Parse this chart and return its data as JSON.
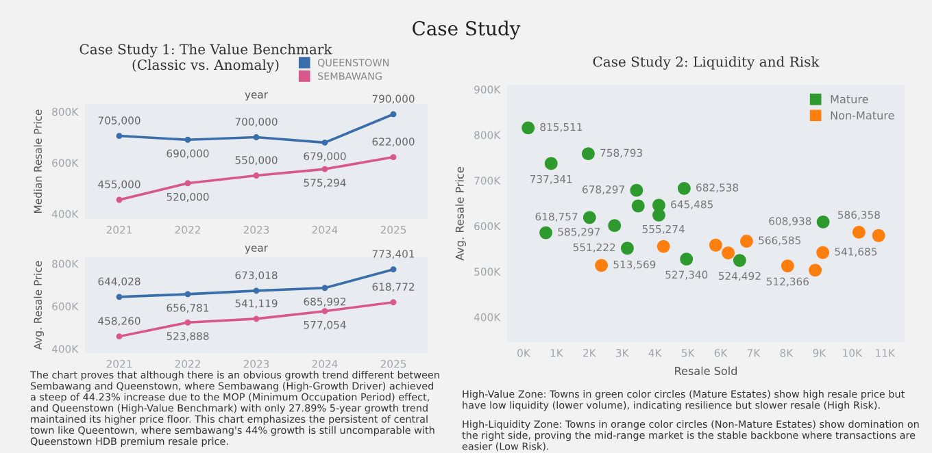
{
  "chart_data": [
    {
      "type": "line",
      "title": "Case Study 1: The Value Benchmark (Classic vs. Anomaly)",
      "xlabel": "year",
      "ylabel": "Median Resale Price",
      "annotations": [
        "Case Study"
      ],
      "categories": [
        "2021",
        "2022",
        "2023",
        "2024",
        "2025"
      ],
      "series": [
        {
          "name": "QUEENSTOWN",
          "color": "#3a6eab",
          "values": [
            705000,
            690000,
            700000,
            679000,
            790000
          ],
          "value_labels": [
            "705,000",
            "690,000",
            "700,000",
            "679,000",
            "790,000"
          ]
        },
        {
          "name": "SEMBAWANG",
          "color": "#d9588a",
          "values": [
            455000,
            520000,
            550000,
            575294,
            622000
          ],
          "value_labels": [
            "455,000",
            "520,000",
            "550,000",
            "575,294",
            "622,000"
          ]
        }
      ],
      "ylim": [
        380000,
        830000
      ],
      "yticks": [
        {
          "value": 400000,
          "label": "400K"
        },
        {
          "value": 600000,
          "label": "600K"
        },
        {
          "value": 800000,
          "label": "800K"
        }
      ],
      "marker": "circle",
      "line_style": "solid",
      "legend": "top right",
      "grid": false
    },
    {
      "type": "line",
      "xlabel": "year",
      "ylabel": "Avg. Resale Price",
      "annotations": [
        "The chart proves that although there is an obvious growth trend different between Sembawang and Queenstown, where Sembawang (High-Growth Driver) achieved a steep of 44.23% increase due to the MOP (Minimum Occupation Period) effect, and Queenstown (High-Value Benchmark) with only 27.89% 5-year growth trend maintained its higher price floor. This chart emphasizes the persistent of central town like Queentown, where sembawang's 44% growth is still uncomparable with Queenstown HDB premium resale price."
      ],
      "categories": [
        "2021",
        "2022",
        "2023",
        "2024",
        "2025"
      ],
      "series": [
        {
          "color": "#3a6eab",
          "values": [
            644028,
            656781,
            673018,
            685992,
            773401
          ],
          "value_labels": [
            "644,028",
            "656,781",
            "673,018",
            "685,992",
            "773,401"
          ]
        },
        {
          "color": "#d9588a",
          "values": [
            458260,
            523888,
            541119,
            577054,
            618772
          ],
          "value_labels": [
            "458,260",
            "523,888",
            "541,119",
            "577,054",
            "618,772"
          ]
        }
      ],
      "ylim": [
        380000,
        830000
      ],
      "yticks": [
        {
          "value": 400000,
          "label": "400K"
        },
        {
          "value": 600000,
          "label": "600K"
        },
        {
          "value": 800000,
          "label": "800K"
        }
      ],
      "marker": "circle",
      "line_style": "solid",
      "grid": false
    },
    {
      "type": "scatter",
      "title": "Case Study 2: Liquidity and Risk",
      "xlabel": "Resale Sold",
      "ylabel": "Avg. Resale Price",
      "annotations": [
        "High-Value Zone: Towns in green color circles (Mature Estates) show high resale price but have low liquidity (lower volume), indicating resilience but slower resale (High Risk).",
        "High-Liquidity Zone: Towns in orange color circles (Non-Mature Estates) show domination on the right side, proving the mid-range market is the stable backbone where transactions are easier (Low Risk)."
      ],
      "series": [
        {
          "name": "Mature",
          "color": "#2e9a2e",
          "x": [
            140,
            840,
            1970,
            3440,
            4890,
            3490,
            4120,
            4120,
            2010,
            2770,
            680,
            3160,
            9120,
            4960,
            6580
          ],
          "values": [
            815511,
            737341,
            758793,
            678297,
            682538,
            644000,
            645485,
            624000,
            618757,
            601000,
            585297,
            551222,
            608938,
            527340,
            524492
          ],
          "value_labels": [
            "815,511",
            "737,341",
            "758,793",
            "678,297",
            "682,538",
            null,
            "645,485",
            null,
            "618,757",
            null,
            "585,297",
            "551,222",
            "608,938",
            "527,340",
            "524,492"
          ]
        },
        {
          "name": "Non-Mature",
          "color": "#ff7f0e",
          "x": [
            2370,
            4260,
            5850,
            6230,
            6790,
            8040,
            8880,
            9110,
            10210,
            10810
          ],
          "values": [
            513569,
            555274,
            558000,
            541000,
            566585,
            512366,
            503000,
            541685,
            586358,
            579000
          ],
          "value_labels": [
            "513,569",
            "555,274",
            null,
            null,
            "566,585",
            "512,366",
            null,
            "541,685",
            "586,358",
            null
          ]
        }
      ],
      "xlim": [
        -500,
        11600
      ],
      "ylim": [
        345000,
        910000
      ],
      "xticks": [
        {
          "value": 0,
          "label": "0K"
        },
        {
          "value": 1000,
          "label": "1K"
        },
        {
          "value": 2000,
          "label": "2K"
        },
        {
          "value": 3000,
          "label": "3K"
        },
        {
          "value": 4000,
          "label": "4K"
        },
        {
          "value": 5000,
          "label": "5K"
        },
        {
          "value": 6000,
          "label": "6K"
        },
        {
          "value": 7000,
          "label": "7K"
        },
        {
          "value": 8000,
          "label": "8K"
        },
        {
          "value": 9000,
          "label": "9K"
        },
        {
          "value": 10000,
          "label": "10K"
        },
        {
          "value": 11000,
          "label": "11K"
        }
      ],
      "yticks": [
        {
          "value": 400000,
          "label": "400K"
        },
        {
          "value": 500000,
          "label": "500K"
        },
        {
          "value": 600000,
          "label": "600K"
        },
        {
          "value": 700000,
          "label": "700K"
        },
        {
          "value": 800000,
          "label": "800K"
        },
        {
          "value": 900000,
          "label": "900K"
        }
      ],
      "marker": "circle",
      "legend": "top right",
      "grid": false
    }
  ]
}
